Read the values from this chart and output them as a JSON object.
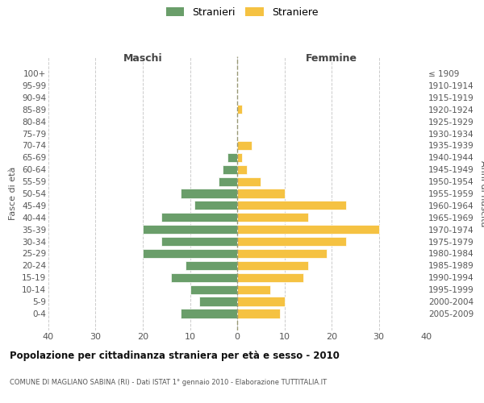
{
  "age_groups": [
    "100+",
    "95-99",
    "90-94",
    "85-89",
    "80-84",
    "75-79",
    "70-74",
    "65-69",
    "60-64",
    "55-59",
    "50-54",
    "45-49",
    "40-44",
    "35-39",
    "30-34",
    "25-29",
    "20-24",
    "15-19",
    "10-14",
    "5-9",
    "0-4"
  ],
  "birth_years": [
    "≤ 1909",
    "1910-1914",
    "1915-1919",
    "1920-1924",
    "1925-1929",
    "1930-1934",
    "1935-1939",
    "1940-1944",
    "1945-1949",
    "1950-1954",
    "1955-1959",
    "1960-1964",
    "1965-1969",
    "1970-1974",
    "1975-1979",
    "1980-1984",
    "1985-1989",
    "1990-1994",
    "1995-1999",
    "2000-2004",
    "2005-2009"
  ],
  "maschi": [
    0,
    0,
    0,
    0,
    0,
    0,
    0,
    2,
    3,
    4,
    12,
    9,
    16,
    20,
    16,
    20,
    11,
    14,
    10,
    8,
    12
  ],
  "femmine": [
    0,
    0,
    0,
    1,
    0,
    0,
    3,
    1,
    2,
    5,
    10,
    23,
    15,
    30,
    23,
    19,
    15,
    14,
    7,
    10,
    9
  ],
  "male_color": "#6a9e6a",
  "female_color": "#f5c242",
  "background_color": "#ffffff",
  "grid_color": "#cccccc",
  "title": "Popolazione per cittadinanza straniera per età e sesso - 2010",
  "subtitle": "COMUNE DI MAGLIANO SABINA (RI) - Dati ISTAT 1° gennaio 2010 - Elaborazione TUTTITALIA.IT",
  "xlabel_left": "Maschi",
  "xlabel_right": "Femmine",
  "ylabel_left": "Fasce di età",
  "ylabel_right": "Anni di nascita",
  "legend_male": "Stranieri",
  "legend_female": "Straniere",
  "xlim": 40,
  "bar_height": 0.75
}
